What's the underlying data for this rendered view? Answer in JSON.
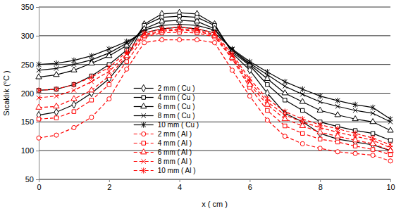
{
  "chart_data": {
    "type": "line",
    "x_label": "x ( cm )",
    "y_label": "Sıcaklık (°C )",
    "x": [
      0,
      0.5,
      1,
      1.5,
      2,
      2.5,
      3,
      3.5,
      4,
      4.5,
      5,
      5.5,
      6,
      6.5,
      7,
      7.5,
      8,
      8.5,
      9,
      9.5,
      10
    ],
    "xlim": [
      0,
      10
    ],
    "xticks": [
      0,
      2,
      4,
      6,
      8,
      10
    ],
    "ylim": [
      50,
      350
    ],
    "yticks": [
      50,
      100,
      150,
      200,
      250,
      300,
      350
    ],
    "grid": true,
    "legend": "lower center",
    "series": [
      {
        "name": "2 mm ( Cu )",
        "color": "#000000",
        "line_style": "solid",
        "marker": "diamond",
        "values": [
          162,
          167,
          180,
          200,
          225,
          262,
          320,
          338,
          340,
          338,
          320,
          270,
          240,
          200,
          165,
          150,
          130,
          120,
          115,
          110,
          100
        ]
      },
      {
        "name": "4 mm ( Cu )",
        "color": "#000000",
        "line_style": "solid",
        "marker": "square",
        "values": [
          205,
          207,
          215,
          230,
          250,
          275,
          318,
          332,
          334,
          332,
          318,
          272,
          248,
          215,
          188,
          170,
          150,
          142,
          135,
          130,
          118
        ]
      },
      {
        "name": "6 mm ( Cu )",
        "color": "#000000",
        "line_style": "solid",
        "marker": "triangle",
        "values": [
          228,
          232,
          240,
          252,
          265,
          283,
          312,
          325,
          327,
          325,
          312,
          275,
          250,
          225,
          200,
          185,
          170,
          162,
          155,
          150,
          135
        ]
      },
      {
        "name": "8 mm ( Cu )",
        "color": "#000000",
        "line_style": "solid",
        "marker": "x",
        "values": [
          240,
          243,
          250,
          258,
          270,
          287,
          310,
          318,
          320,
          318,
          310,
          276,
          252,
          232,
          212,
          198,
          185,
          177,
          170,
          165,
          150
        ]
      },
      {
        "name": "10 mm ( Cu )",
        "color": "#000000",
        "line_style": "solid",
        "marker": "asterisk",
        "values": [
          250,
          252,
          257,
          265,
          277,
          290,
          305,
          312,
          315,
          312,
          305,
          277,
          255,
          237,
          220,
          207,
          195,
          187,
          180,
          175,
          155
        ]
      },
      {
        "name": "2 mm ( Al )",
        "color": "#ff0000",
        "line_style": "dashed",
        "marker": "circle",
        "values": [
          122,
          127,
          140,
          158,
          190,
          242,
          288,
          293,
          293,
          293,
          288,
          240,
          195,
          153,
          125,
          112,
          104,
          98,
          95,
          92,
          82
        ]
      },
      {
        "name": "4 mm ( Al )",
        "color": "#ff0000",
        "line_style": "dashed",
        "marker": "square",
        "values": [
          155,
          157,
          168,
          188,
          215,
          255,
          298,
          305,
          306,
          305,
          298,
          260,
          210,
          170,
          143,
          130,
          120,
          115,
          108,
          102,
          93
        ]
      },
      {
        "name": "6 mm ( Al )",
        "color": "#ff0000",
        "line_style": "dashed",
        "marker": "triangle",
        "values": [
          175,
          177,
          190,
          205,
          230,
          265,
          300,
          308,
          310,
          308,
          300,
          262,
          215,
          180,
          155,
          143,
          132,
          125,
          118,
          112,
          100
        ]
      },
      {
        "name": "8 mm ( Al )",
        "color": "#ff0000",
        "line_style": "dashed",
        "marker": "x",
        "values": [
          192,
          195,
          205,
          220,
          238,
          268,
          302,
          310,
          312,
          310,
          302,
          265,
          220,
          185,
          162,
          150,
          140,
          132,
          125,
          118,
          105
        ]
      },
      {
        "name": "10 mm ( Al )",
        "color": "#ff0000",
        "line_style": "dashed",
        "marker": "asterisk",
        "values": [
          205,
          207,
          215,
          228,
          245,
          272,
          305,
          312,
          315,
          312,
          305,
          268,
          225,
          190,
          168,
          155,
          145,
          138,
          130,
          122,
          110
        ]
      }
    ]
  }
}
